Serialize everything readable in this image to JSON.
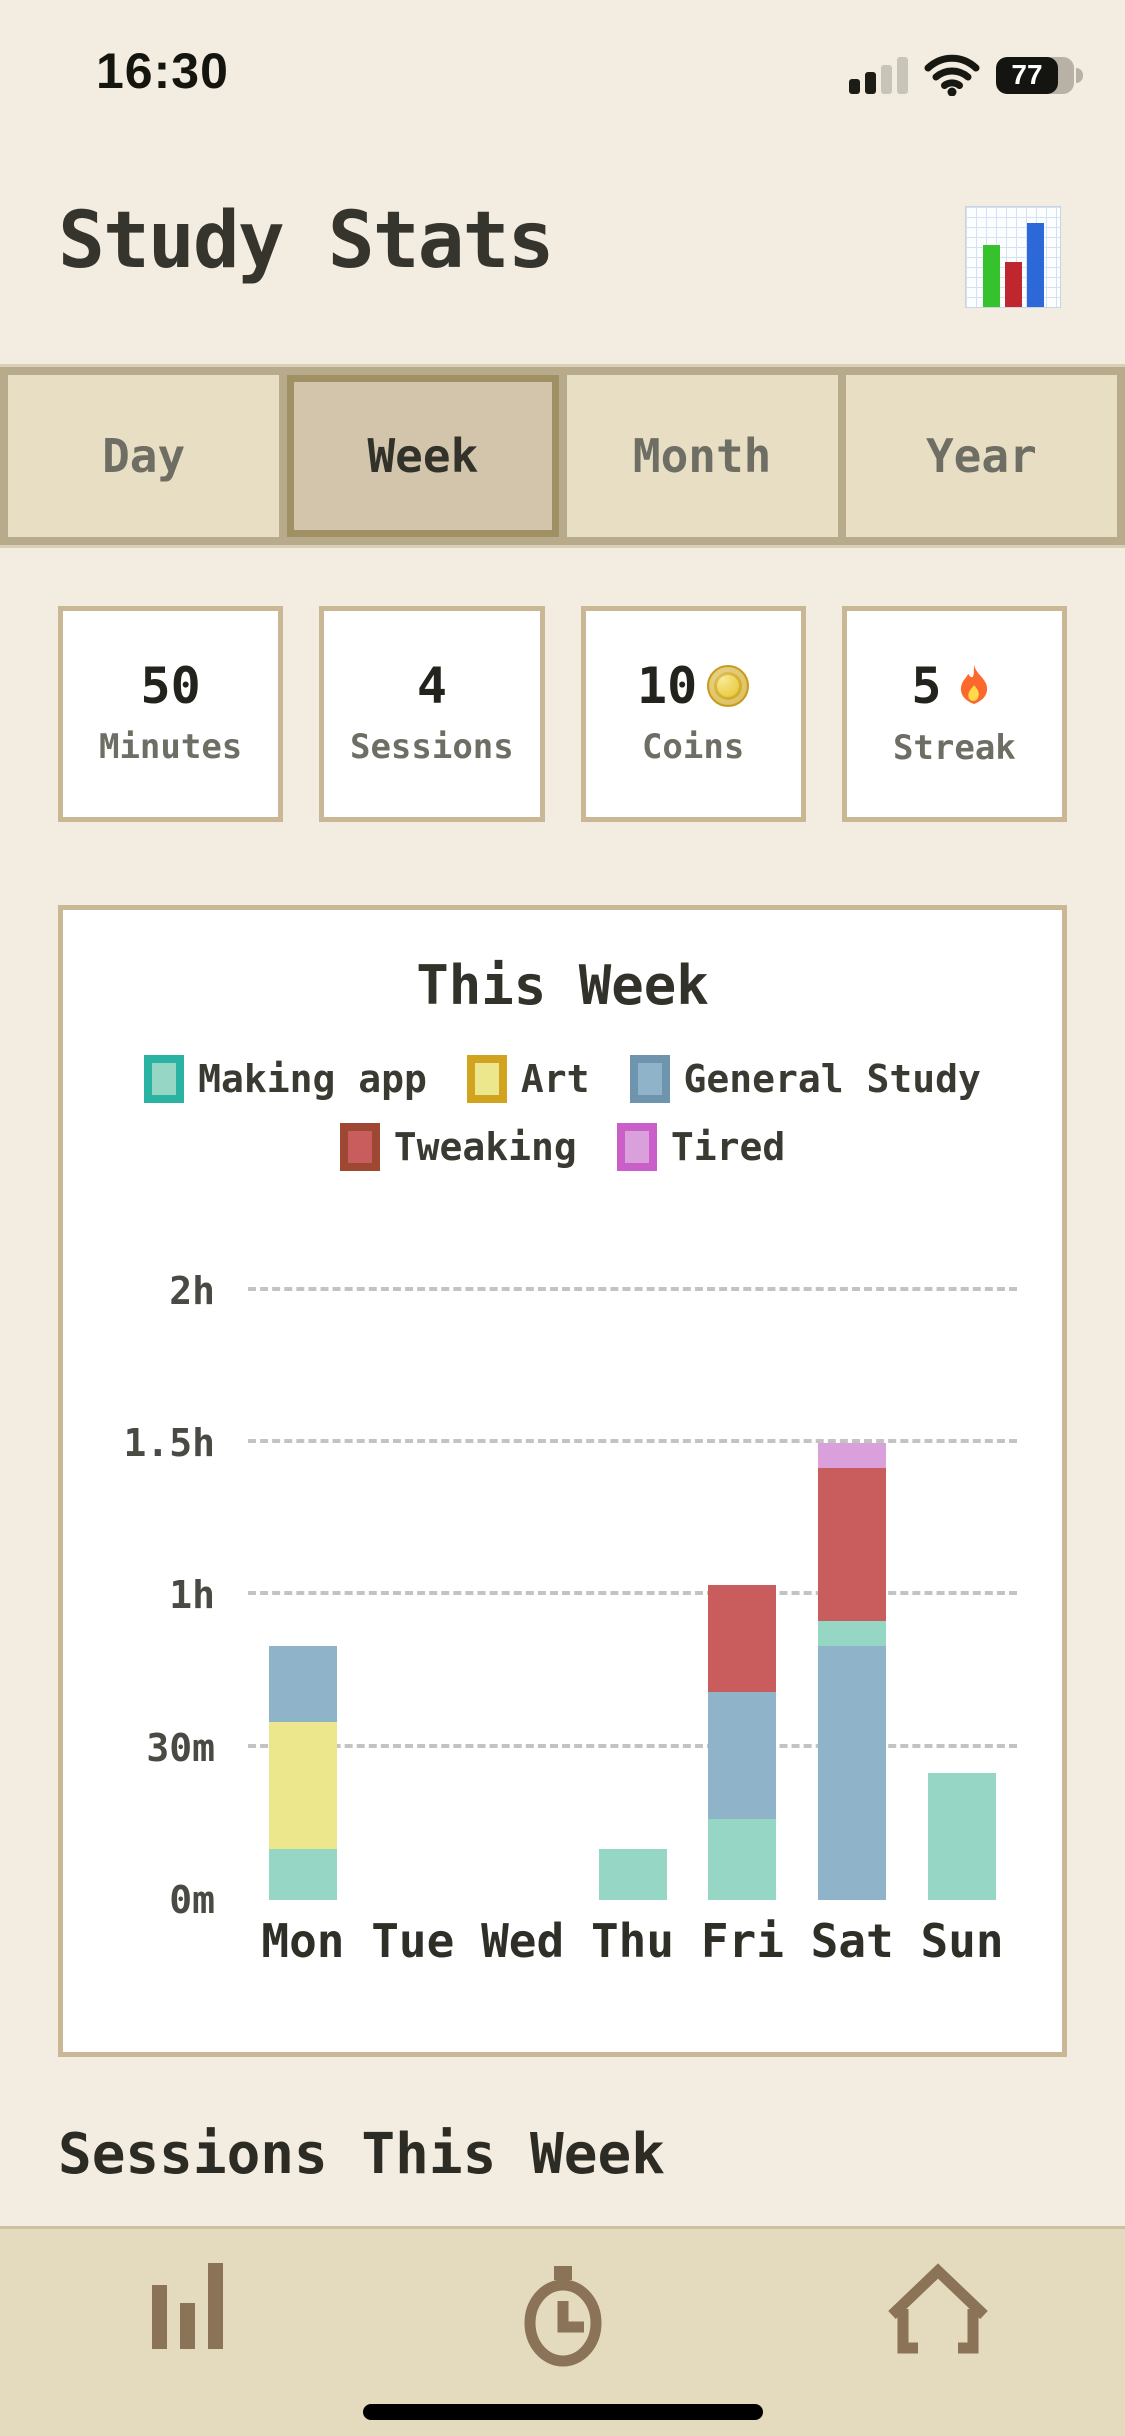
{
  "status_bar": {
    "time": "16:30",
    "battery_percent": "77",
    "icons": [
      "cellular-signal-icon",
      "wifi-icon",
      "battery-icon"
    ]
  },
  "header": {
    "title": "Study Stats",
    "icon": "bar-chart-emoji-icon"
  },
  "tabs": {
    "items": [
      "Day",
      "Week",
      "Month",
      "Year"
    ],
    "selected": "Week"
  },
  "stats": {
    "cards": [
      {
        "value": "50",
        "label": "Minutes",
        "icon": null
      },
      {
        "value": "4",
        "label": "Sessions",
        "icon": null
      },
      {
        "value": "10",
        "label": "Coins",
        "icon": "coin"
      },
      {
        "value": "5",
        "label": "Streak",
        "icon": "flame"
      }
    ]
  },
  "chart_data": {
    "type": "stacked-bar",
    "title": "This Week",
    "unit": "minutes",
    "categories": [
      "Mon",
      "Tue",
      "Wed",
      "Thu",
      "Fri",
      "Sat",
      "Sun"
    ],
    "series": [
      {
        "name": "Making app",
        "fill": "#96d6c4",
        "border": "#2ab3a3"
      },
      {
        "name": "Art",
        "fill": "#ece68c",
        "border": "#d2a31f"
      },
      {
        "name": "General Study",
        "fill": "#8fb3c8",
        "border": "#6f94ae"
      },
      {
        "name": "Tweaking",
        "fill": "#c95c5c",
        "border": "#9e4732"
      },
      {
        "name": "Tired",
        "fill": "#d9a0dc",
        "border": "#cb5fc9"
      }
    ],
    "legend_rows": [
      [
        "Making app",
        "Art",
        "General Study"
      ],
      [
        "Tweaking",
        "Tired"
      ]
    ],
    "y_ticks": [
      {
        "label": "0m",
        "minutes": 0
      },
      {
        "label": "30m",
        "minutes": 30
      },
      {
        "label": "1h",
        "minutes": 60
      },
      {
        "label": "1.5h",
        "minutes": 90
      },
      {
        "label": "2h",
        "minutes": 120
      }
    ],
    "y_max_minutes": 130,
    "grid": "dashed-horizontal",
    "legend_position": "top",
    "bars": [
      {
        "day": "Mon",
        "segments": [
          {
            "series": "Making app",
            "minutes": 10
          },
          {
            "series": "Art",
            "minutes": 25
          },
          {
            "series": "General Study",
            "minutes": 15
          }
        ]
      },
      {
        "day": "Tue",
        "segments": []
      },
      {
        "day": "Wed",
        "segments": []
      },
      {
        "day": "Thu",
        "segments": [
          {
            "series": "Making app",
            "minutes": 10
          }
        ]
      },
      {
        "day": "Fri",
        "segments": [
          {
            "series": "Making app",
            "minutes": 16
          },
          {
            "series": "General Study",
            "minutes": 25
          },
          {
            "series": "Tweaking",
            "minutes": 21
          }
        ]
      },
      {
        "day": "Sat",
        "segments": [
          {
            "series": "General Study",
            "minutes": 50
          },
          {
            "series": "Making app",
            "minutes": 5
          },
          {
            "series": "Tweaking",
            "minutes": 30
          },
          {
            "series": "Tired",
            "minutes": 5
          }
        ]
      },
      {
        "day": "Sun",
        "segments": [
          {
            "series": "Making app",
            "minutes": 25
          }
        ]
      }
    ]
  },
  "section": {
    "heading": "Sessions This Week"
  },
  "tab_bar": {
    "icons": [
      "stats-bars-icon",
      "clock-icon",
      "home-icon"
    ]
  },
  "colors": {
    "page_bg": "#f2ece1",
    "card_border": "#c9b795",
    "card_bg": "#ffffff",
    "text_dark": "#32322a",
    "text_gray": "#6e6e64",
    "tabs_container_bg": "#b8ab8c",
    "tab_bg": "#e8dec3",
    "tab_selected_bg": "#d2c5ac",
    "tab_selected_border": "#a09064",
    "tab_bar_bg": "#e4dabd",
    "nav_icon_brown": "#8a7356",
    "gridline": "#c3c3c3",
    "coin_gold": "#e9cb45",
    "flame_orange": "#fb6a2c"
  }
}
